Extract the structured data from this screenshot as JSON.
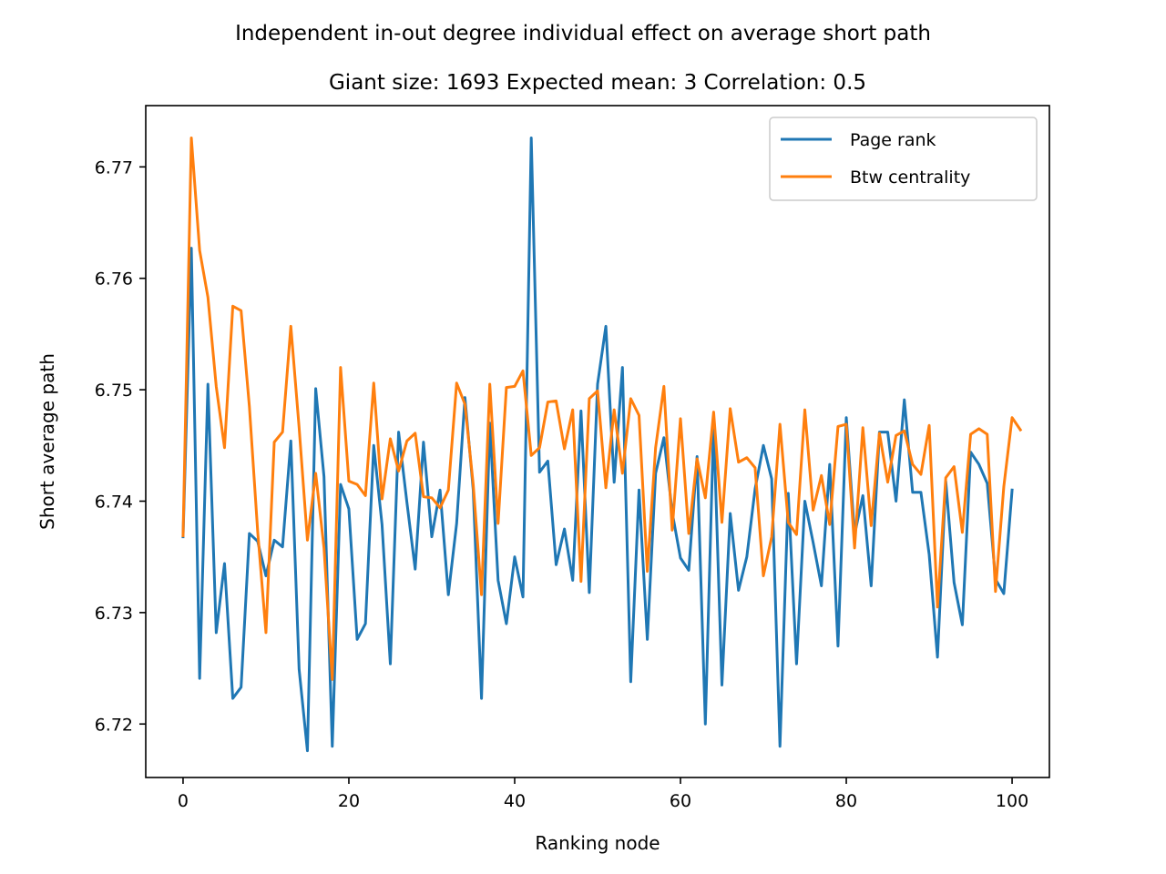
{
  "chart_data": {
    "type": "line",
    "title": "Independent in-out degree individual effect on average short path",
    "subtitle": "Giant size: 1693  Expected mean: 3  Correlation: 0.5",
    "xlabel": "Ranking node",
    "ylabel": "Short average path",
    "xlim": [
      -4.5,
      104.5
    ],
    "ylim": [
      6.7152,
      6.7755
    ],
    "xticks": [
      0,
      20,
      40,
      60,
      80,
      100
    ],
    "yticks": [
      6.72,
      6.73,
      6.74,
      6.75,
      6.76,
      6.77
    ],
    "grid": false,
    "legend_position": "top-right",
    "series": [
      {
        "name": "Page rank",
        "color": "#1f77b4",
        "values": [
          6.7368,
          6.7627,
          6.7241,
          6.7505,
          6.7282,
          6.7344,
          6.7223,
          6.7233,
          6.7371,
          6.7364,
          6.7333,
          6.7365,
          6.7359,
          6.7454,
          6.7249,
          6.7176,
          6.7501,
          6.7422,
          6.718,
          6.7415,
          6.7393,
          6.7276,
          6.729,
          6.745,
          6.7379,
          6.7254,
          6.7462,
          6.7399,
          6.7339,
          6.7453,
          6.7368,
          6.741,
          6.7316,
          6.738,
          6.7493,
          6.741,
          6.7223,
          6.747,
          6.7329,
          6.729,
          6.735,
          6.7314,
          6.7726,
          6.7426,
          6.7436,
          6.7343,
          6.7375,
          6.7329,
          6.7481,
          6.7318,
          6.7505,
          6.7557,
          6.7417,
          6.752,
          6.7238,
          6.741,
          6.7276,
          6.7425,
          6.7457,
          6.739,
          6.7349,
          6.7338,
          6.744,
          6.72,
          6.747,
          6.7235,
          6.7389,
          6.732,
          6.735,
          6.7411,
          6.745,
          6.742,
          6.718,
          6.7407,
          6.7254,
          6.74,
          6.7363,
          6.7324,
          6.7433,
          6.727,
          6.7475,
          6.737,
          6.7405,
          6.7324,
          6.7462,
          6.7462,
          6.74,
          6.7491,
          6.7408,
          6.7408,
          6.7352,
          6.726,
          6.7418,
          6.7327,
          6.7289,
          6.7444,
          6.7433,
          6.7416,
          6.733,
          6.7317,
          6.741
        ]
      },
      {
        "name": "Btw centrality",
        "color": "#ff7f0e",
        "values": [
          6.7369,
          6.7726,
          6.7625,
          6.7583,
          6.7503,
          6.7448,
          6.7575,
          6.7571,
          6.7485,
          6.7373,
          6.7282,
          6.7453,
          6.7462,
          6.7557,
          6.7466,
          6.7365,
          6.7425,
          6.7358,
          6.724,
          6.752,
          6.7418,
          6.7415,
          6.7405,
          6.7506,
          6.7402,
          6.7456,
          6.7427,
          6.7454,
          6.7461,
          6.7404,
          6.7403,
          6.7394,
          6.741,
          6.7506,
          6.7487,
          6.7415,
          6.7316,
          6.7505,
          6.738,
          6.7502,
          6.7503,
          6.7517,
          6.7441,
          6.7448,
          6.7489,
          6.749,
          6.7447,
          6.7482,
          6.7328,
          6.7492,
          6.7499,
          6.7412,
          6.7482,
          6.7425,
          6.7492,
          6.7477,
          6.7337,
          6.7448,
          6.7503,
          6.7374,
          6.7474,
          6.7371,
          6.7438,
          6.7403,
          6.748,
          6.7381,
          6.7483,
          6.7435,
          6.7439,
          6.743,
          6.7333,
          6.7368,
          6.7469,
          6.7381,
          6.737,
          6.7482,
          6.7392,
          6.7423,
          6.7379,
          6.7467,
          6.7469,
          6.7358,
          6.7466,
          6.7378,
          6.7461,
          6.7417,
          6.7459,
          6.7463,
          6.7433,
          6.7424,
          6.7468,
          6.7305,
          6.7421,
          6.7431,
          6.7372,
          6.746,
          6.7465,
          6.746,
          6.7319,
          6.7413,
          6.7475,
          6.7464
        ]
      }
    ]
  }
}
